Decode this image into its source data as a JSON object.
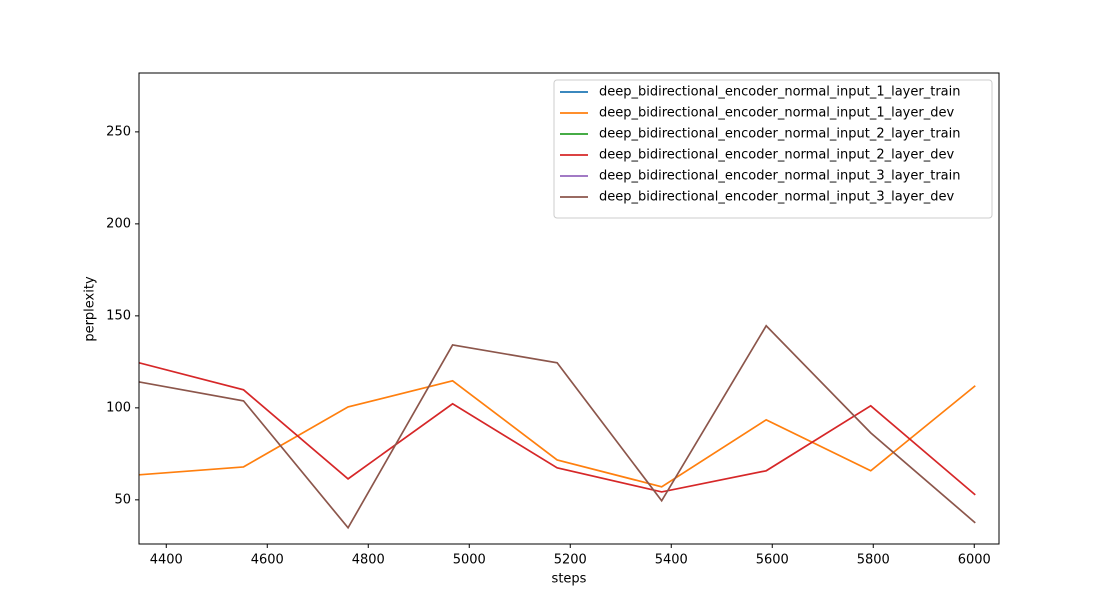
{
  "chart_data": {
    "type": "line",
    "xlabel": "steps",
    "ylabel": "perplexity",
    "x": [
      4346,
      4553,
      4760,
      4967,
      5174,
      5381,
      5588,
      5795,
      6002
    ],
    "series": [
      {
        "name": "deep_bidirectional_encoder_normal_input_1_layer_train",
        "color": "#1f77b4",
        "values": [
          null,
          null,
          null,
          null,
          null,
          null,
          null,
          null,
          null
        ]
      },
      {
        "name": "deep_bidirectional_encoder_normal_input_1_layer_dev",
        "color": "#ff7f0e",
        "values": [
          63.6,
          67.9,
          100.5,
          114.7,
          71.7,
          57.1,
          93.5,
          65.8,
          112.0
        ]
      },
      {
        "name": "deep_bidirectional_encoder_normal_input_2_layer_train",
        "color": "#2ca02c",
        "values": [
          null,
          null,
          null,
          null,
          null,
          null,
          null,
          null,
          null
        ]
      },
      {
        "name": "deep_bidirectional_encoder_normal_input_2_layer_dev",
        "color": "#d62728",
        "values": [
          124.5,
          109.8,
          61.4,
          102.2,
          67.4,
          54.3,
          65.8,
          101.1,
          52.7
        ]
      },
      {
        "name": "deep_bidirectional_encoder_normal_input_3_layer_train",
        "color": "#9467bd",
        "values": [
          null,
          null,
          null,
          null,
          null,
          null,
          null,
          null,
          null
        ]
      },
      {
        "name": "deep_bidirectional_encoder_normal_input_3_layer_dev",
        "color": "#8c564b",
        "values": [
          114.1,
          103.8,
          34.8,
          134.2,
          124.5,
          49.5,
          144.6,
          86.4,
          37.5
        ]
      }
    ],
    "xlim": [
      4346,
      6049
    ],
    "xticks": [
      4400,
      4600,
      4800,
      5000,
      5200,
      5400,
      5600,
      5800,
      6000
    ],
    "ylim": [
      26,
      282
    ],
    "yticks": [
      50,
      100,
      150,
      200,
      250
    ],
    "legend": "upper right"
  }
}
